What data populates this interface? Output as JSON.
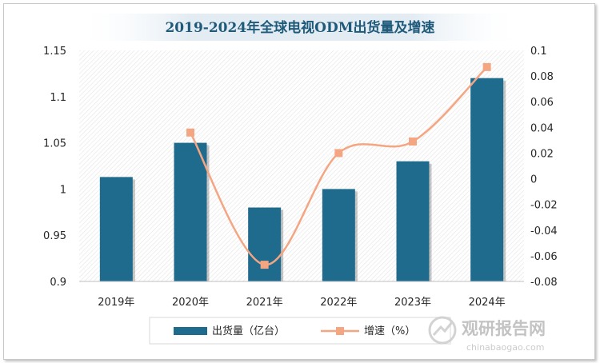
{
  "chart_data": {
    "type": "bar",
    "title": "2019-2024年全球电视ODM出货量及增速",
    "categories": [
      "2019年",
      "2020年",
      "2021年",
      "2022年",
      "2023年",
      "2024年"
    ],
    "series": [
      {
        "name": "出货量（亿台）",
        "type": "bar",
        "axis": "left",
        "values": [
          1.013,
          1.05,
          0.98,
          1.0,
          1.03,
          1.12
        ],
        "color": "#1f6b8e"
      },
      {
        "name": "增速（%）",
        "type": "line",
        "axis": "right",
        "smooth": true,
        "values": [
          null,
          0.036,
          -0.067,
          0.02,
          0.029,
          0.087
        ],
        "color": "#f4a582"
      }
    ],
    "y_left": {
      "ylim": [
        0.9,
        1.15
      ],
      "ticks": [
        0.9,
        0.95,
        1,
        1.05,
        1.1,
        1.15
      ],
      "tick_labels": [
        "0.9",
        "0.95",
        "1",
        "1.05",
        "1.1",
        "1.15"
      ]
    },
    "y_right": {
      "ylim": [
        -0.08,
        0.1
      ],
      "ticks": [
        -0.08,
        -0.06,
        -0.04,
        -0.02,
        0,
        0.02,
        0.04,
        0.06,
        0.08,
        0.1
      ],
      "tick_labels": [
        "-0.08",
        "-0.06",
        "-0.04",
        "-0.02",
        "0",
        "0.02",
        "0.04",
        "0.06",
        "0.08",
        "0.1"
      ]
    },
    "grid": false,
    "legend": "bottom"
  },
  "watermark": {
    "brand": "观研报告网",
    "url": "chinabaogao.com"
  }
}
